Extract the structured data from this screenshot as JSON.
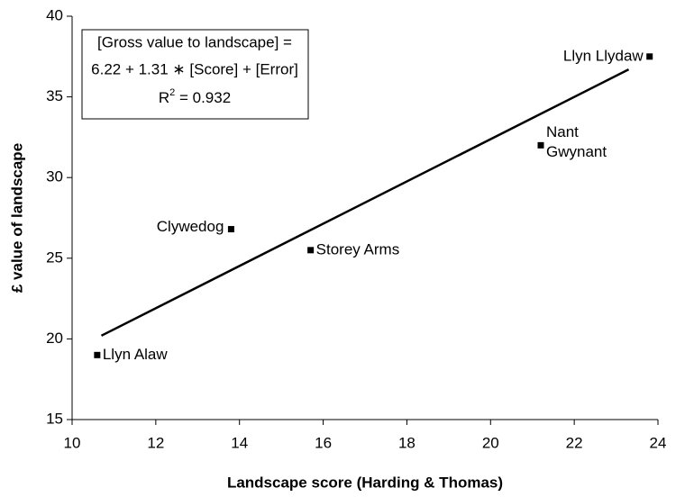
{
  "chart_data": {
    "type": "scatter",
    "x_label": "Landscape score (Harding & Thomas)",
    "y_label": "£ value of landscape",
    "series": [
      {
        "color": "#000000",
        "x": [
          10.6,
          13.8,
          15.7,
          21.2,
          23.8
        ],
        "values": [
          19.0,
          26.8,
          25.5,
          32.0,
          37.5
        ],
        "point_labels": [
          [
            "Llyn Alaw"
          ],
          [
            "Clywedog"
          ],
          [
            "Storey Arms"
          ],
          [
            "Nant",
            "Gwynant"
          ],
          [
            "Llyn Llydaw"
          ]
        ]
      }
    ],
    "trendline": {
      "color": "#000000",
      "x": [
        10.7,
        23.3
      ],
      "values": [
        20.2,
        36.7
      ]
    },
    "annotation": {
      "lines": [
        "[Gross value to landscape] =",
        "6.22 + 1.31 ∗ [Score] + [Error]"
      ],
      "r2": {
        "base": "R",
        "sup": "2",
        "rest": " = 0.932"
      }
    },
    "xlim": [
      10,
      24
    ],
    "xticks": [
      10,
      12,
      14,
      16,
      18,
      20,
      22,
      24
    ],
    "ylim": [
      15,
      40
    ],
    "yticks": [
      15,
      20,
      25,
      30,
      35,
      40
    ],
    "grid": false
  }
}
